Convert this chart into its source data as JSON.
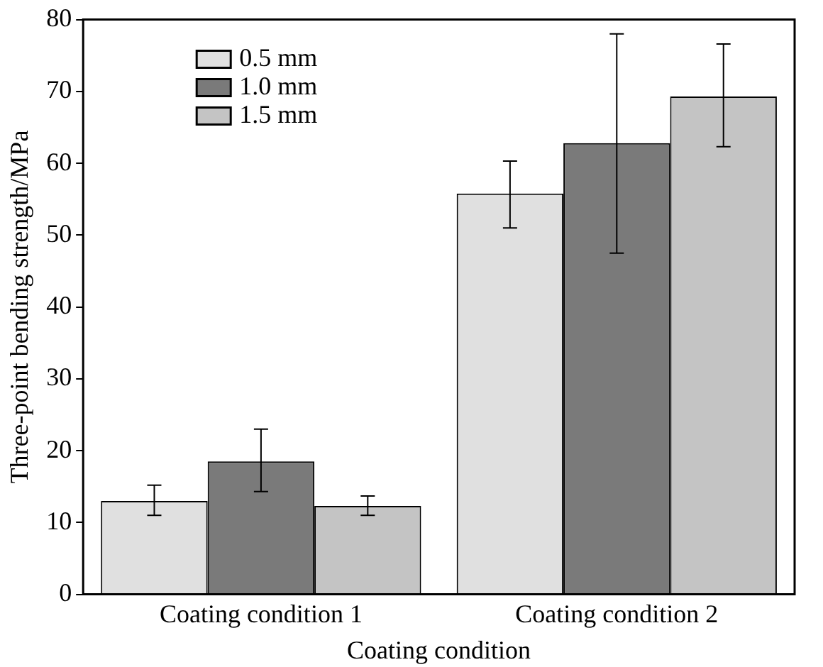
{
  "chart_data": {
    "type": "bar",
    "xlabel": "Coating condition",
    "ylabel": "Three-point bending strength/MPa",
    "categories": [
      "Coating condition 1",
      "Coating condition 2"
    ],
    "series": [
      {
        "name": "0.5 mm",
        "color": "#e0e0e0",
        "values": [
          13,
          55.8
        ],
        "errors": [
          [
            11,
            15.2
          ],
          [
            51,
            60.3
          ]
        ]
      },
      {
        "name": "1.0 mm",
        "color": "#7a7a7a",
        "values": [
          18.5,
          62.8
        ],
        "errors": [
          [
            14.3,
            23
          ],
          [
            47.5,
            78
          ]
        ]
      },
      {
        "name": "1.5 mm",
        "color": "#c4c4c4",
        "values": [
          12.3,
          69.3
        ],
        "errors": [
          [
            11,
            13.7
          ],
          [
            62.3,
            76.6
          ]
        ]
      }
    ],
    "ylim": [
      0,
      80
    ],
    "yticks": [
      0,
      10,
      20,
      30,
      40,
      50,
      60,
      70,
      80
    ],
    "grid": false,
    "legend": "top left"
  }
}
